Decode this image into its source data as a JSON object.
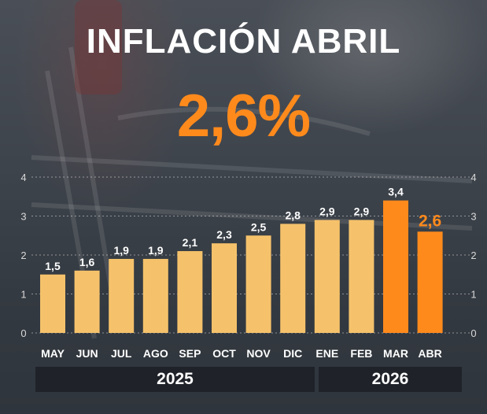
{
  "title": "INFLACIÓN ABRIL",
  "headline_value": "2,6%",
  "years": [
    "2025",
    "2026"
  ],
  "colors": {
    "bar": "#f5c26b",
    "bar_highlight": "#ff8a1c",
    "title": "#ffffff",
    "headline": "#ff8a1c",
    "year_bar": "#1f2329"
  },
  "chart_data": {
    "type": "bar",
    "categories": [
      "MAY",
      "JUN",
      "JUL",
      "AGO",
      "SEP",
      "OCT",
      "NOV",
      "DIC",
      "ENE",
      "FEB",
      "MAR",
      "ABR"
    ],
    "values": [
      1.5,
      1.6,
      1.9,
      1.9,
      2.1,
      2.3,
      2.5,
      2.8,
      2.9,
      2.9,
      3.4,
      2.6
    ],
    "value_labels": [
      "1,5",
      "1,6",
      "1,9",
      "1,9",
      "2,1",
      "2,3",
      "2,5",
      "2,8",
      "2,9",
      "2,9",
      "3,4",
      "2,6"
    ],
    "highlighted_categories": [
      "MAR",
      "ABR"
    ],
    "ylim": [
      0,
      4
    ],
    "yticks": [
      "0",
      "1",
      "2",
      "3",
      "4"
    ],
    "title": "",
    "xlabel": "",
    "ylabel": "",
    "grid": true,
    "legend": "none"
  }
}
